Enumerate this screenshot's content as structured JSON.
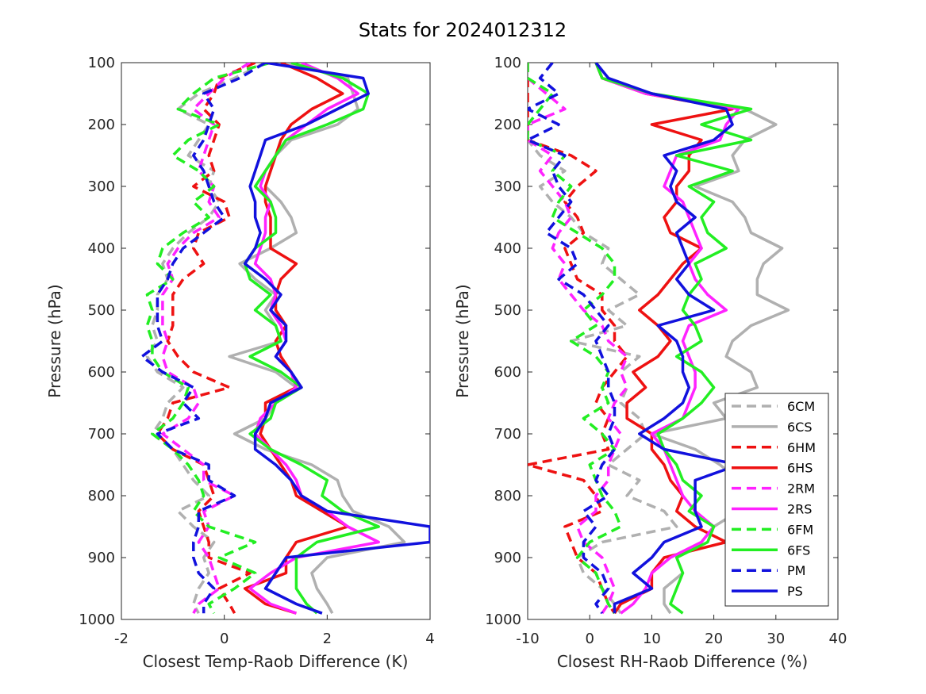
{
  "title": "Stats for 2024012312",
  "legend": {
    "entries": [
      "6CM",
      "6CS",
      "6HM",
      "6HS",
      "2RM",
      "2RS",
      "6FM",
      "6FS",
      "PM",
      "PS"
    ]
  },
  "series_styles": {
    "6CM": {
      "color": "#b0b0b0",
      "dash": true
    },
    "6CS": {
      "color": "#b0b0b0",
      "dash": false
    },
    "6HM": {
      "color": "#ee1111",
      "dash": true
    },
    "6HS": {
      "color": "#ee1111",
      "dash": false
    },
    "2RM": {
      "color": "#ff22ff",
      "dash": true
    },
    "2RS": {
      "color": "#ff22ff",
      "dash": false
    },
    "6FM": {
      "color": "#22ee22",
      "dash": true
    },
    "6FS": {
      "color": "#22ee22",
      "dash": false
    },
    "PM": {
      "color": "#1111dd",
      "dash": true
    },
    "PS": {
      "color": "#1111dd",
      "dash": false
    }
  },
  "chart_data": [
    {
      "type": "line",
      "xlabel": "Closest Temp-Raob Difference (K)",
      "ylabel": "Pressure (hPa)",
      "xlim": [
        -2,
        4
      ],
      "ylim": [
        100,
        1000
      ],
      "y_reversed": true,
      "xticks": [
        "-2",
        "0",
        "2",
        "4"
      ],
      "yticks": [
        "100",
        "200",
        "300",
        "400",
        "500",
        "600",
        "700",
        "800",
        "900",
        "1000"
      ],
      "pressure": [
        100,
        125,
        150,
        175,
        200,
        225,
        250,
        275,
        300,
        325,
        350,
        375,
        400,
        425,
        450,
        475,
        500,
        525,
        550,
        575,
        600,
        625,
        650,
        675,
        700,
        725,
        750,
        775,
        800,
        825,
        850,
        875,
        900,
        925,
        950,
        975,
        990
      ],
      "series": [
        {
          "name": "6CM",
          "values": [
            0.8,
            0.2,
            -0.5,
            -0.9,
            -0.3,
            -0.5,
            -0.7,
            -0.2,
            -0.3,
            -0.1,
            -0.3,
            -0.7,
            -1.0,
            -1.2,
            -1.1,
            -1.3,
            -1.3,
            -1.4,
            -1.3,
            -1.5,
            -1.3,
            -0.8,
            -1.1,
            -1.2,
            -1.4,
            -1.0,
            -0.8,
            -0.6,
            -0.3,
            -0.9,
            -0.6,
            -0.2,
            -0.4,
            -0.3,
            -0.5,
            -0.6,
            -0.5
          ]
        },
        {
          "name": "6CS",
          "values": [
            1.2,
            2.4,
            2.5,
            2.6,
            2.2,
            1.3,
            1.0,
            0.9,
            0.8,
            1.1,
            1.3,
            1.4,
            0.9,
            0.3,
            0.6,
            1.0,
            0.8,
            1.0,
            1.1,
            0.1,
            1.0,
            1.4,
            1.0,
            0.8,
            0.2,
            0.8,
            1.7,
            2.2,
            2.3,
            2.5,
            3.2,
            3.5,
            2.0,
            1.7,
            1.8,
            2.0,
            2.1
          ]
        },
        {
          "name": "6HM",
          "values": [
            0.6,
            -0.1,
            -0.2,
            -0.4,
            -0.1,
            -0.2,
            -0.3,
            -0.2,
            -0.6,
            0.0,
            0.1,
            -0.5,
            -0.6,
            -0.4,
            -0.8,
            -1.0,
            -1.0,
            -1.0,
            -1.1,
            -0.9,
            -0.6,
            0.1,
            -1.0,
            -1.1,
            -1.3,
            -1.0,
            -0.4,
            -0.3,
            -0.2,
            -0.5,
            -0.4,
            -0.3,
            -0.3,
            0.5,
            -0.1,
            0.1,
            0.2
          ]
        },
        {
          "name": "6HS",
          "values": [
            1.1,
            1.8,
            2.3,
            1.7,
            1.3,
            1.1,
            1.0,
            0.9,
            0.8,
            0.8,
            0.9,
            0.9,
            0.9,
            1.4,
            1.1,
            1.0,
            1.0,
            1.2,
            1.0,
            1.1,
            1.3,
            1.4,
            0.8,
            0.8,
            0.7,
            0.9,
            1.1,
            1.3,
            1.4,
            1.9,
            2.4,
            1.4,
            1.2,
            1.2,
            0.4,
            0.8,
            1.4
          ]
        },
        {
          "name": "2RM",
          "values": [
            0.5,
            0.0,
            -0.3,
            -0.6,
            -0.2,
            -0.3,
            -0.4,
            -0.5,
            -0.2,
            -0.3,
            -0.1,
            -0.6,
            -0.9,
            -1.1,
            -1.0,
            -1.2,
            -1.2,
            -1.2,
            -1.1,
            -1.2,
            -1.1,
            -0.6,
            -0.5,
            -0.7,
            -1.2,
            -0.8,
            -0.4,
            -0.4,
            0.2,
            -0.4,
            -0.3,
            -0.5,
            -0.3,
            -0.2,
            -0.1,
            -0.5,
            -0.6
          ]
        },
        {
          "name": "2RS",
          "values": [
            1.5,
            2.2,
            2.6,
            2.0,
            1.6,
            1.2,
            1.0,
            0.8,
            0.7,
            0.9,
            0.8,
            0.8,
            0.7,
            0.6,
            0.9,
            1.0,
            0.9,
            1.1,
            1.2,
            1.0,
            1.3,
            1.4,
            1.0,
            0.7,
            0.6,
            0.9,
            1.2,
            1.4,
            1.5,
            2.0,
            2.4,
            3.0,
            1.4,
            0.9,
            0.5,
            0.9,
            1.4
          ]
        },
        {
          "name": "6FM",
          "values": [
            0.9,
            -0.2,
            -0.6,
            -0.9,
            -0.1,
            -0.7,
            -1.0,
            -0.5,
            -0.2,
            -0.6,
            -0.3,
            -0.8,
            -1.2,
            -1.3,
            -1.0,
            -1.5,
            -1.4,
            -1.5,
            -1.4,
            -1.4,
            -1.2,
            -0.7,
            -0.8,
            -1.0,
            -1.4,
            -1.0,
            -0.7,
            -0.5,
            -0.4,
            -0.6,
            -0.3,
            0.6,
            -0.1,
            0.6,
            0.2,
            -0.3,
            -0.2
          ]
        },
        {
          "name": "6FS",
          "values": [
            1.3,
            2.3,
            2.8,
            2.7,
            2.0,
            1.2,
            1.0,
            0.8,
            0.6,
            0.9,
            1.0,
            1.0,
            0.6,
            0.4,
            0.5,
            0.9,
            0.6,
            1.0,
            1.1,
            0.5,
            1.1,
            1.5,
            1.0,
            0.9,
            0.5,
            0.9,
            1.5,
            2.0,
            1.9,
            2.3,
            3.0,
            1.8,
            1.4,
            1.4,
            1.4,
            1.6,
            1.8
          ]
        },
        {
          "name": "PM",
          "values": [
            0.8,
            0.3,
            -0.4,
            -0.2,
            -0.3,
            -0.4,
            -0.6,
            -0.4,
            -0.3,
            -0.2,
            0.0,
            -0.4,
            -0.8,
            -1.0,
            -1.1,
            -1.3,
            -1.3,
            -1.3,
            -1.2,
            -1.6,
            -1.2,
            -0.6,
            -0.8,
            -0.5,
            -1.3,
            -1.0,
            -0.3,
            -0.3,
            0.2,
            -0.5,
            -0.5,
            -0.6,
            -0.6,
            -0.5,
            -0.2,
            -0.4,
            -0.4
          ]
        },
        {
          "name": "PS",
          "values": [
            0.8,
            2.7,
            2.8,
            2.2,
            1.6,
            0.8,
            0.7,
            0.6,
            0.5,
            0.6,
            0.6,
            0.7,
            0.6,
            0.4,
            0.8,
            1.1,
            0.9,
            1.2,
            1.2,
            1.0,
            1.3,
            1.5,
            0.9,
            0.8,
            0.6,
            0.6,
            1.0,
            1.3,
            1.5,
            2.0,
            4.0,
            4.0,
            1.2,
            1.0,
            0.8,
            1.4,
            1.9
          ]
        }
      ]
    },
    {
      "type": "line",
      "xlabel": "Closest RH-Raob Difference (%)",
      "ylabel": "Pressure (hPa)",
      "xlim": [
        -10,
        40
      ],
      "ylim": [
        100,
        1000
      ],
      "y_reversed": true,
      "xticks": [
        "-10",
        "0",
        "10",
        "20",
        "30",
        "40"
      ],
      "yticks": [
        "100",
        "200",
        "300",
        "400",
        "500",
        "600",
        "700",
        "800",
        "900",
        "1000"
      ],
      "legend_position": "bottom-right",
      "pressure": [
        100,
        125,
        150,
        175,
        200,
        225,
        250,
        275,
        300,
        325,
        350,
        375,
        400,
        425,
        450,
        475,
        500,
        525,
        550,
        575,
        600,
        625,
        650,
        675,
        700,
        725,
        750,
        775,
        800,
        825,
        850,
        875,
        900,
        925,
        950,
        975,
        990
      ],
      "series": [
        {
          "name": "6CM",
          "values": [
            -10,
            -10,
            -10,
            -10,
            -10,
            -10,
            -8,
            -4,
            -8,
            -6,
            -3,
            -1,
            3,
            2,
            5,
            8,
            3,
            6,
            -3,
            8,
            5,
            6,
            5,
            8,
            9,
            6,
            3,
            8,
            6,
            12,
            14,
            2,
            -2,
            -1,
            2,
            4,
            5
          ]
        },
        {
          "name": "6CS",
          "values": [
            1,
            2,
            10,
            25,
            30,
            25,
            23,
            24,
            17,
            23,
            25,
            26,
            31,
            28,
            27,
            27,
            32,
            26,
            23,
            22,
            26,
            27,
            20,
            22,
            10,
            17,
            21,
            24,
            22,
            24,
            20,
            18,
            14,
            15,
            12,
            12,
            13
          ]
        },
        {
          "name": "6HM",
          "values": [
            -10,
            -10,
            -10,
            -10,
            -10,
            -10,
            -3,
            1,
            -2,
            -4,
            -2,
            -1,
            -4,
            -3,
            -2,
            2,
            2,
            4,
            4,
            6,
            4,
            2,
            1,
            3,
            2,
            3,
            -10,
            -1,
            1,
            2,
            -4,
            -3,
            -2,
            1,
            2,
            3,
            4
          ]
        },
        {
          "name": "6HS",
          "values": [
            1,
            2,
            9,
            23,
            10,
            18,
            16,
            16,
            14,
            14,
            12,
            13,
            18,
            15,
            13,
            11,
            8,
            11,
            13,
            11,
            7,
            9,
            6,
            6,
            10,
            10,
            12,
            13,
            15,
            14,
            17,
            22,
            12,
            10,
            10,
            5,
            4
          ]
        },
        {
          "name": "2RM",
          "values": [
            -10,
            -10,
            -7,
            -4,
            -10,
            -10,
            -6,
            -8,
            -6,
            -4,
            -3,
            -5,
            -6,
            -4,
            -5,
            -3,
            -1,
            2,
            3,
            6,
            5,
            6,
            4,
            3,
            5,
            4,
            3,
            3,
            1,
            1,
            -2,
            -1,
            2,
            3,
            4,
            3,
            2
          ]
        },
        {
          "name": "2RS",
          "values": [
            1,
            2,
            9,
            24,
            22,
            21,
            14,
            13,
            12,
            15,
            16,
            17,
            18,
            16,
            17,
            19,
            22,
            16,
            15,
            16,
            17,
            17,
            16,
            15,
            10,
            12,
            13,
            14,
            15,
            17,
            20,
            18,
            13,
            10,
            9,
            7,
            5
          ]
        },
        {
          "name": "6FM",
          "values": [
            -10,
            -10,
            -6,
            -8,
            -10,
            -10,
            -4,
            -6,
            -3,
            -5,
            -6,
            -2,
            2,
            4,
            4,
            2,
            -1,
            1,
            -3,
            1,
            3,
            2,
            3,
            -1,
            2,
            4,
            0,
            1,
            2,
            4,
            5,
            0,
            -2,
            1,
            2,
            3,
            4
          ]
        },
        {
          "name": "6FS",
          "values": [
            1,
            2,
            10,
            26,
            18,
            26,
            14,
            23,
            16,
            20,
            18,
            19,
            22,
            17,
            18,
            16,
            15,
            17,
            18,
            14,
            18,
            20,
            18,
            15,
            11,
            12,
            14,
            15,
            18,
            16,
            20,
            19,
            14,
            15,
            14,
            13,
            15
          ]
        },
        {
          "name": "PM",
          "values": [
            -6,
            -8,
            -5,
            -10,
            -5,
            -10,
            -4,
            -6,
            -5,
            -3,
            -5,
            -7,
            -3,
            -2,
            -5,
            -1,
            1,
            3,
            1,
            2,
            3,
            3,
            4,
            4,
            3,
            4,
            2,
            1,
            3,
            -1,
            1,
            -1,
            -1,
            2,
            3,
            1,
            2
          ]
        },
        {
          "name": "PS",
          "values": [
            1,
            3,
            10,
            22,
            23,
            20,
            12,
            14,
            13,
            14,
            17,
            14,
            15,
            16,
            14,
            16,
            20,
            11,
            14,
            15,
            15,
            16,
            15,
            12,
            8,
            12,
            24,
            17,
            17,
            17,
            18,
            12,
            10,
            7,
            10,
            4,
            4
          ]
        }
      ]
    }
  ]
}
